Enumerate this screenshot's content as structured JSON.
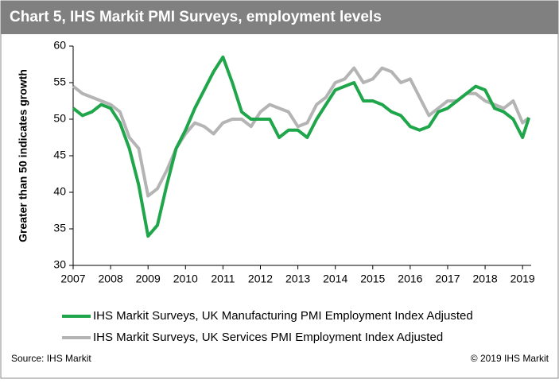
{
  "chart_data": {
    "type": "line",
    "title": "Chart 5, IHS Markit PMI Surveys, employment  levels",
    "y_label": "Greater than 50 indicates growth",
    "source": "Source: IHS Markit",
    "copyright": "© 2019 IHS Markit",
    "x": [
      2007.0,
      2007.25,
      2007.5,
      2007.75,
      2008.0,
      2008.25,
      2008.5,
      2008.75,
      2009.0,
      2009.25,
      2009.5,
      2009.75,
      2010.0,
      2010.25,
      2010.5,
      2010.75,
      2011.0,
      2011.25,
      2011.5,
      2011.75,
      2012.0,
      2012.25,
      2012.5,
      2012.75,
      2013.0,
      2013.25,
      2013.5,
      2013.75,
      2014.0,
      2014.25,
      2014.5,
      2014.75,
      2015.0,
      2015.25,
      2015.5,
      2015.75,
      2016.0,
      2016.25,
      2016.5,
      2016.75,
      2017.0,
      2017.25,
      2017.5,
      2017.75,
      2018.0,
      2018.25,
      2018.5,
      2018.75,
      2019.0,
      2019.17
    ],
    "series": [
      {
        "name": "IHS Markit Surveys, UK Manufacturing PMI Employment Index Adjusted",
        "color": "#1fa64b",
        "values": [
          51.5,
          50.5,
          51,
          52,
          51.5,
          49.5,
          46,
          41,
          34,
          35.5,
          41,
          46,
          48.5,
          51.5,
          54,
          56.5,
          58.5,
          55,
          51,
          50,
          50,
          50,
          47.5,
          48.5,
          48.5,
          47.5,
          50,
          52,
          54,
          54.5,
          55,
          52.5,
          52.5,
          52,
          51,
          50.5,
          49,
          48.5,
          49,
          51,
          51.5,
          52.5,
          53.5,
          54.5,
          54,
          51.5,
          51,
          50,
          47.5,
          50.2
        ]
      },
      {
        "name": "IHS Markit Surveys, UK Services PMI Employment Index Adjusted",
        "color": "#b4b4b4",
        "values": [
          54.5,
          53.5,
          53,
          52.5,
          52,
          51,
          47.5,
          46,
          39.5,
          40.5,
          43,
          46,
          48,
          49.5,
          49,
          48,
          49.5,
          50,
          50,
          49,
          51,
          52,
          51.5,
          51,
          49,
          49.5,
          52,
          53,
          55,
          55.5,
          57,
          55,
          55.5,
          57,
          56.5,
          55,
          55.5,
          53,
          50.5,
          51.5,
          52.5,
          52.5,
          53.5,
          53.5,
          52.5,
          52,
          51.5,
          52.5,
          49.5,
          50.2
        ]
      }
    ],
    "xlim": [
      2007,
      2019.23
    ],
    "xticks": [
      2007,
      2008,
      2009,
      2010,
      2011,
      2012,
      2013,
      2014,
      2015,
      2016,
      2017,
      2018,
      2019
    ],
    "ylim": [
      30,
      60
    ],
    "yticks": [
      30,
      35,
      40,
      45,
      50,
      55,
      60
    ]
  }
}
